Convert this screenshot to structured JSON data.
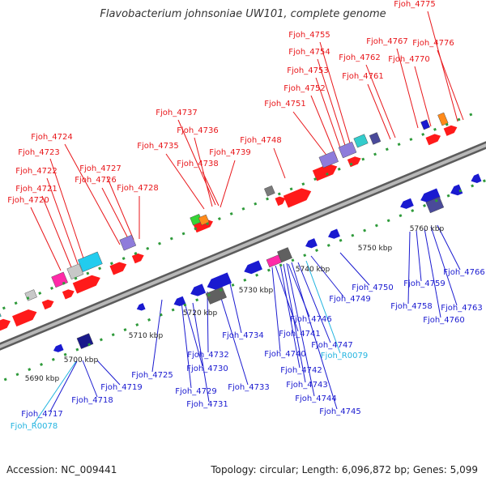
{
  "title": "Flavobacterium johnsoniae UW101, complete genome",
  "accession": "Accession: NC_009441",
  "summary": "Topology: circular; Length: 6,096,872 bp; Genes: 5,099",
  "colors": {
    "forward_label": "#e8161a",
    "reverse_label": "#1a1ad0",
    "rna_label": "#22b4e0",
    "axis": "#8a8a8a",
    "tick": "#2e9a3a"
  },
  "bp_ticks": [
    "5690 kbp",
    "5700 kbp",
    "5710 kbp",
    "5720 kbp",
    "5730 kbp",
    "5740 kbp",
    "5750 kbp",
    "5760 kbp"
  ],
  "forward_labels": [
    "Fjoh_4720",
    "Fjoh_4721",
    "Fjoh_4722",
    "Fjoh_4723",
    "Fjoh_4724",
    "Fjoh_4726",
    "Fjoh_4727",
    "Fjoh_4728",
    "Fjoh_4735",
    "Fjoh_4736",
    "Fjoh_4737",
    "Fjoh_4738",
    "Fjoh_4739",
    "Fjoh_4748",
    "Fjoh_4751",
    "Fjoh_4752",
    "Fjoh_4753",
    "Fjoh_4754",
    "Fjoh_4755",
    "Fjoh_4761",
    "Fjoh_4762",
    "Fjoh_4767",
    "Fjoh_4770",
    "Fjoh_4775",
    "Fjoh_4776"
  ],
  "reverse_labels": [
    "Fjoh_4717",
    "Fjoh_4718",
    "Fjoh_4719",
    "Fjoh_4725",
    "Fjoh_4729",
    "Fjoh_4730",
    "Fjoh_4731",
    "Fjoh_4732",
    "Fjoh_4733",
    "Fjoh_4734",
    "Fjoh_4740",
    "Fjoh_4741",
    "Fjoh_4742",
    "Fjoh_4743",
    "Fjoh_4744",
    "Fjoh_4745",
    "Fjoh_4746",
    "Fjoh_4747",
    "Fjoh_4749",
    "Fjoh_4750",
    "Fjoh_4758",
    "Fjoh_4759",
    "Fjoh_4760",
    "Fjoh_4763",
    "Fjoh_4766"
  ],
  "rna_labels": [
    "Fjoh_R0078",
    "Fjoh_R0079"
  ]
}
